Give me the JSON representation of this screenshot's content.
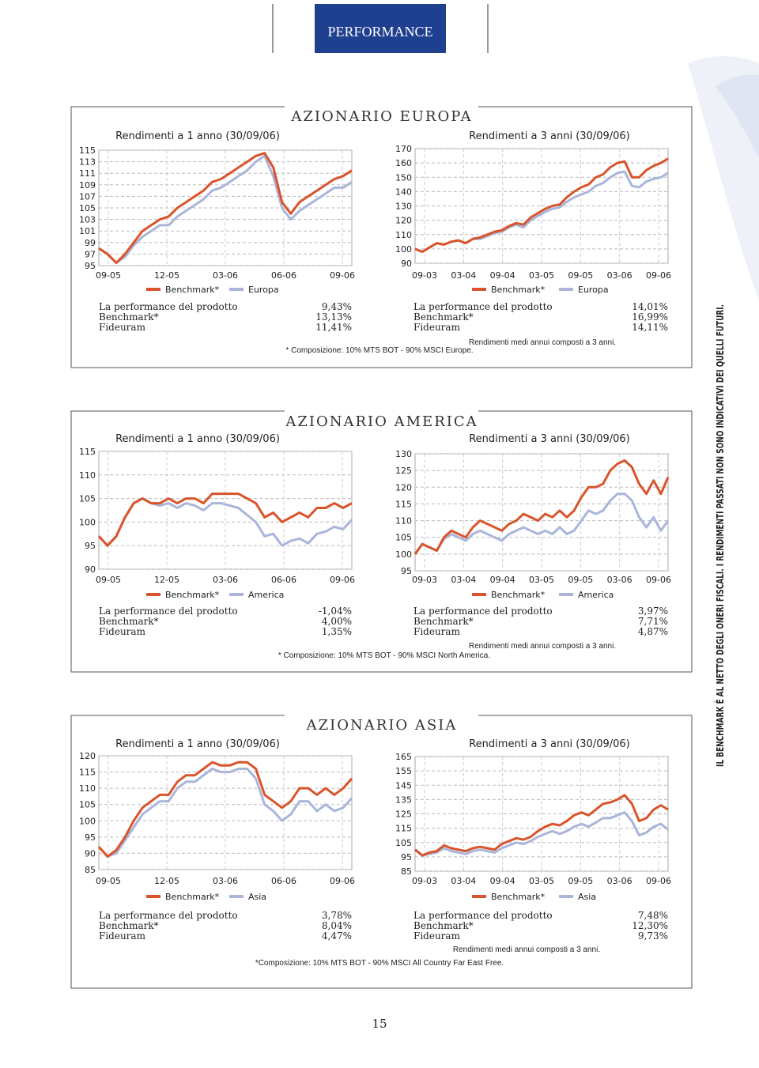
{
  "header": {
    "title": "PERFORMANCE"
  },
  "sections": [
    {
      "title": "AZIONARIO EUROPA",
      "tables": [
        {
          "rows": [
            {
              "label": "La performance del prodotto",
              "value": "9,43%"
            },
            {
              "label": "Benchmark*",
              "value": "13,13%"
            },
            {
              "label": "Fideuram",
              "value": "11,41%"
            }
          ],
          "note": "* Composizione: 10% MTS BOT - 90% MSCI Europe."
        },
        {
          "rows": [
            {
              "label": "La performance del prodotto",
              "value": "14,01%"
            },
            {
              "label": "Benchmark*",
              "value": "16,99%"
            },
            {
              "label": "Fideuram",
              "value": "14,11%"
            }
          ],
          "note": "Rendimenti medi annui composti a 3 anni."
        }
      ]
    },
    {
      "title": "AZIONARIO AMERICA",
      "tables": [
        {
          "rows": [
            {
              "label": "La performance del prodotto",
              "value": "-1,04%"
            },
            {
              "label": "Benchmark*",
              "value": "4,00%"
            },
            {
              "label": "Fideuram",
              "value": "1,35%"
            }
          ],
          "note": "* Composizione: 10% MTS BOT - 90% MSCI North America."
        },
        {
          "rows": [
            {
              "label": "La performance del prodotto",
              "value": "3,97%"
            },
            {
              "label": "Benchmark*",
              "value": "7,71%"
            },
            {
              "label": "Fideuram",
              "value": "4,87%"
            }
          ],
          "note": "Rendimenti medi annui composti a 3 anni."
        }
      ]
    },
    {
      "title": "AZIONARIO ASIA",
      "tables": [
        {
          "rows": [
            {
              "label": "La performance del prodotto",
              "value": "3,78%"
            },
            {
              "label": "Benchmark*",
              "value": "8,04%"
            },
            {
              "label": "Fideuram",
              "value": "4,47%"
            }
          ],
          "note": "*Composizione: 10% MTS BOT - 90% MSCI All Country Far East Free."
        },
        {
          "rows": [
            {
              "label": "La performance del prodotto",
              "value": "7,48%"
            },
            {
              "label": "Benchmark*",
              "value": "12,30%"
            },
            {
              "label": "Fideuram",
              "value": "9,73%"
            }
          ],
          "note": "Rendimenti medi annui composti a 3 anni."
        }
      ]
    }
  ],
  "chart_data": [
    {
      "type": "line",
      "title": "Rendimenti a 1 anno (30/09/06)",
      "x_labels": [
        "09-05",
        "12-05",
        "03-06",
        "06-06",
        "09-06"
      ],
      "ylim": [
        95,
        115
      ],
      "yticks": [
        95,
        97,
        99,
        101,
        103,
        105,
        107,
        109,
        111,
        113,
        115
      ],
      "grid": true,
      "series": [
        {
          "name": "Benchmark*",
          "color": "#d9542b",
          "values": [
            98,
            97,
            95.5,
            97,
            99,
            101,
            102,
            103,
            103.5,
            105,
            106,
            107,
            108,
            109.5,
            110,
            111,
            112,
            113,
            114,
            114.5,
            112,
            106,
            104,
            106,
            107,
            108,
            109,
            110,
            110.5,
            111.5
          ]
        },
        {
          "name": "Europa",
          "color": "#a9b5da",
          "values": [
            98,
            97,
            95.5,
            96.5,
            98.5,
            100,
            101,
            102,
            102,
            103.5,
            104.5,
            105.5,
            106.5,
            108,
            108.5,
            109.5,
            110.5,
            111.5,
            113,
            114,
            110.5,
            105,
            103,
            104.5,
            105.5,
            106.5,
            107.5,
            108.5,
            108.5,
            109.5
          ]
        }
      ]
    },
    {
      "type": "line",
      "title": "Rendimenti a 3 anni (30/09/06)",
      "x_labels": [
        "09-03",
        "03-04",
        "09-04",
        "03-05",
        "09-05",
        "03-06",
        "09-06"
      ],
      "ylim": [
        90,
        170
      ],
      "yticks": [
        90,
        100,
        110,
        120,
        130,
        140,
        150,
        160,
        170
      ],
      "grid": true,
      "series": [
        {
          "name": "Benchmark*",
          "color": "#d9542b",
          "values": [
            100,
            98,
            101,
            104,
            103,
            105,
            106,
            104,
            107,
            108,
            110,
            112,
            113,
            116,
            118,
            117,
            122,
            125,
            128,
            130,
            131,
            136,
            140,
            143,
            145,
            150,
            152,
            157,
            160,
            161,
            150,
            150,
            155,
            158,
            160,
            163
          ]
        },
        {
          "name": "Europa",
          "color": "#a9b5da",
          "values": [
            100,
            98,
            101,
            104,
            103,
            105,
            106,
            104,
            107,
            107,
            109,
            111,
            112,
            115,
            117,
            115,
            120,
            123,
            126,
            128,
            129,
            133,
            136,
            138,
            140,
            144,
            146,
            150,
            153,
            154,
            144,
            143,
            147,
            149,
            150,
            153
          ]
        }
      ]
    },
    {
      "type": "line",
      "title": "Rendimenti a 1 anno (30/09/06)",
      "x_labels": [
        "09-05",
        "12-05",
        "03-06",
        "06-06",
        "09-06"
      ],
      "ylim": [
        90,
        115
      ],
      "yticks": [
        90,
        95,
        100,
        105,
        110,
        115
      ],
      "grid": true,
      "series": [
        {
          "name": "Benchmark*",
          "color": "#d9542b",
          "values": [
            97,
            95,
            97,
            101,
            104,
            105,
            104,
            104,
            105,
            104,
            105,
            105,
            104,
            106,
            106,
            106,
            106,
            105,
            104,
            101,
            102,
            100,
            101,
            102,
            101,
            103,
            103,
            104,
            103,
            104
          ]
        },
        {
          "name": "America",
          "color": "#a9b5da",
          "values": [
            97,
            95,
            97,
            101,
            104,
            105,
            104,
            103.5,
            104,
            103,
            104,
            103.5,
            102.5,
            104,
            104,
            103.5,
            103,
            101.5,
            100,
            97,
            97.5,
            95,
            96,
            96.5,
            95.5,
            97.5,
            98,
            99,
            98.5,
            100.5
          ]
        }
      ]
    },
    {
      "type": "line",
      "title": "Rendimenti a 3 anni (30/09/06)",
      "x_labels": [
        "09-03",
        "03-04",
        "09-04",
        "03-05",
        "09-05",
        "03-06",
        "09-06"
      ],
      "ylim": [
        95,
        130
      ],
      "yticks": [
        95,
        100,
        105,
        110,
        115,
        120,
        125,
        130
      ],
      "grid": true,
      "series": [
        {
          "name": "Benchmark*",
          "color": "#d9542b",
          "values": [
            100,
            103,
            102,
            101,
            105,
            107,
            106,
            105,
            108,
            110,
            109,
            108,
            107,
            109,
            110,
            112,
            111,
            110,
            112,
            111,
            113,
            111,
            113,
            117,
            120,
            120,
            121,
            125,
            127,
            128,
            126,
            121,
            118,
            122,
            118,
            123
          ]
        },
        {
          "name": "America",
          "color": "#a9b5da",
          "values": [
            100,
            103,
            102,
            101,
            104.5,
            106,
            105,
            104,
            106,
            107,
            106,
            105,
            104,
            106,
            107,
            108,
            107,
            106,
            107,
            106,
            108,
            106,
            107,
            110,
            113,
            112,
            113,
            116,
            118,
            118,
            116,
            111,
            108,
            111,
            107,
            110
          ]
        }
      ]
    },
    {
      "type": "line",
      "title": "Rendimenti a 1 anno (30/09/06)",
      "x_labels": [
        "09-05",
        "12-05",
        "03-06",
        "06-06",
        "09-06"
      ],
      "ylim": [
        85,
        120
      ],
      "yticks": [
        85,
        90,
        95,
        100,
        105,
        110,
        115,
        120
      ],
      "grid": true,
      "series": [
        {
          "name": "Benchmark*",
          "color": "#d9542b",
          "values": [
            92,
            89,
            91,
            95,
            100,
            104,
            106,
            108,
            108,
            112,
            114,
            114,
            116,
            118,
            117,
            117,
            118,
            118,
            116,
            108,
            106,
            104,
            106,
            110,
            110,
            108,
            110,
            108,
            110,
            113
          ]
        },
        {
          "name": "Asia",
          "color": "#a9b5da",
          "values": [
            92,
            89,
            90,
            94,
            98,
            102,
            104,
            106,
            106,
            110,
            112,
            112,
            114,
            116,
            115,
            115,
            116,
            116,
            113,
            105,
            103,
            100,
            102,
            106,
            106,
            103,
            105,
            103,
            104,
            107
          ]
        }
      ]
    },
    {
      "type": "line",
      "title": "Rendimenti a 3 anni (30/09/06)",
      "x_labels": [
        "09-03",
        "03-04",
        "09-04",
        "03-05",
        "09-05",
        "03-06",
        "09-06"
      ],
      "ylim": [
        85,
        165
      ],
      "yticks": [
        85,
        95,
        105,
        115,
        125,
        135,
        145,
        155,
        165
      ],
      "grid": true,
      "series": [
        {
          "name": "Benchmark*",
          "color": "#d9542b",
          "values": [
            100,
            96,
            98,
            99,
            103,
            101,
            100,
            99,
            101,
            102,
            101,
            100,
            104,
            106,
            108,
            107,
            109,
            113,
            116,
            118,
            117,
            120,
            124,
            126,
            124,
            128,
            132,
            133,
            135,
            138,
            132,
            120,
            122,
            128,
            131,
            128
          ]
        },
        {
          "name": "Asia",
          "color": "#a9b5da",
          "values": [
            100,
            96,
            97,
            98,
            101,
            99,
            98,
            97,
            99,
            100,
            99,
            98,
            101,
            103,
            105,
            104,
            106,
            109,
            111,
            113,
            111,
            113,
            116,
            118,
            116,
            119,
            122,
            122,
            124,
            126,
            120,
            110,
            112,
            116,
            118,
            114
          ]
        }
      ]
    }
  ],
  "page_number": "15",
  "side_note": "IL BENCHMARK È AL NETTO DEGLI ONERI FISCALI. I RENDIMENTI PASSATI NON SONO INDICATIVI DEI QUELLI FUTURI."
}
